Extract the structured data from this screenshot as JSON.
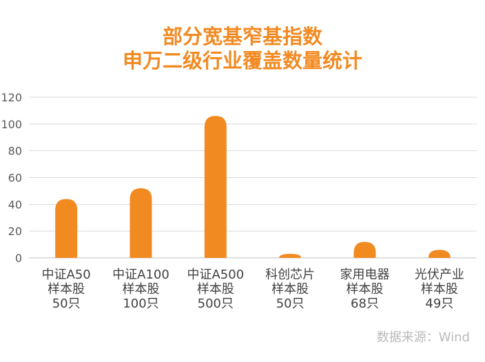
{
  "chart_data": {
    "type": "bar",
    "title_lines": [
      "部分宽基窄基指数",
      "申万二级行业覆盖数量统计"
    ],
    "categories": [
      [
        "中证A50",
        "样本股",
        "50只"
      ],
      [
        "中证A100",
        "样本股",
        "100只"
      ],
      [
        "中证A500",
        "样本股",
        "500只"
      ],
      [
        "科创芯片",
        "样本股",
        "50只"
      ],
      [
        "家用电器",
        "样本股",
        "68只"
      ],
      [
        "光伏产业",
        "样本股",
        "49只"
      ]
    ],
    "values": [
      44,
      52,
      106,
      3,
      12,
      6
    ],
    "ylim": [
      0,
      120
    ],
    "yticks": [
      "0",
      "20",
      "40",
      "60",
      "80",
      "100",
      "120"
    ],
    "grid": true,
    "bar_color": "#f28a22",
    "source": "数据来源：Wind"
  }
}
